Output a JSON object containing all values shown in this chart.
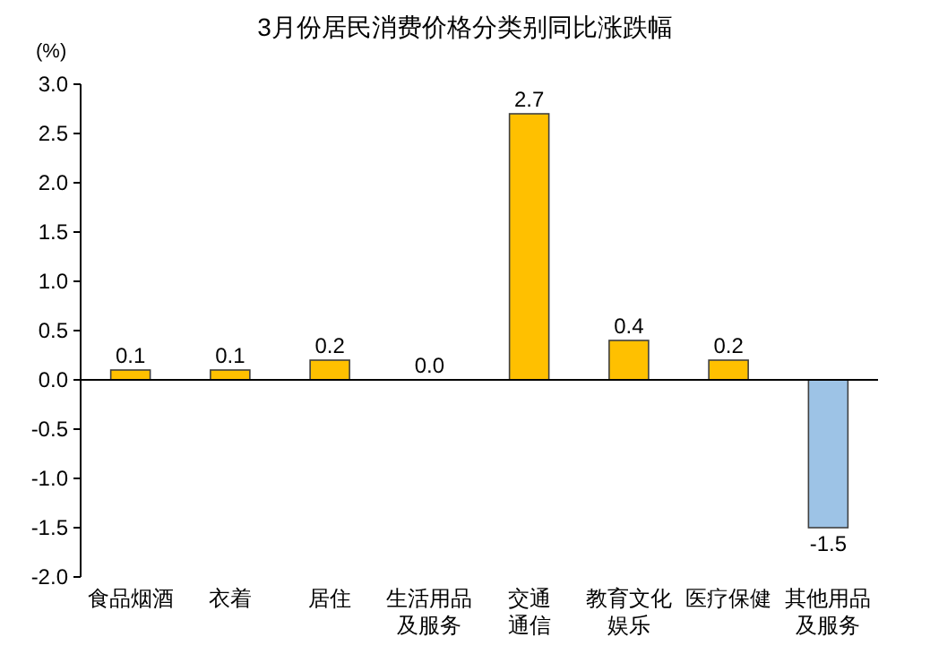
{
  "chart_data": {
    "type": "bar",
    "title": "3月份居民消费价格分类别同比涨跌幅",
    "ylabel": "(%)",
    "categories": [
      "食品烟酒",
      "衣着",
      "居住",
      "生活用品及服务",
      "交通通信",
      "教育文化娱乐",
      "医疗保健",
      "其他用品及服务"
    ],
    "values": [
      0.1,
      0.1,
      0.2,
      0.0,
      2.7,
      0.4,
      0.2,
      -1.5
    ],
    "colors": [
      "#ffc000",
      "#ffc000",
      "#ffc000",
      "#ffc000",
      "#ffc000",
      "#ffc000",
      "#ffc000",
      "#9dc3e6"
    ],
    "value_labels": [
      "0.1",
      "0.1",
      "0.2",
      "0.0",
      "2.7",
      "0.4",
      "0.2",
      "-1.5"
    ],
    "ylim": [
      -2,
      3
    ],
    "yticks": [
      {
        "value": -2,
        "label": "-2.0"
      },
      {
        "value": -1.5,
        "label": "-1.5"
      },
      {
        "value": -1,
        "label": "-1.0"
      },
      {
        "value": -0.5,
        "label": "-0.5"
      },
      {
        "value": 0,
        "label": "0.0"
      },
      {
        "value": 0.5,
        "label": "0.5"
      },
      {
        "value": 1,
        "label": "1.0"
      },
      {
        "value": 1.5,
        "label": "1.5"
      },
      {
        "value": 2,
        "label": "2.0"
      },
      {
        "value": 2.5,
        "label": "2.5"
      },
      {
        "value": 3,
        "label": "3.0"
      }
    ]
  }
}
